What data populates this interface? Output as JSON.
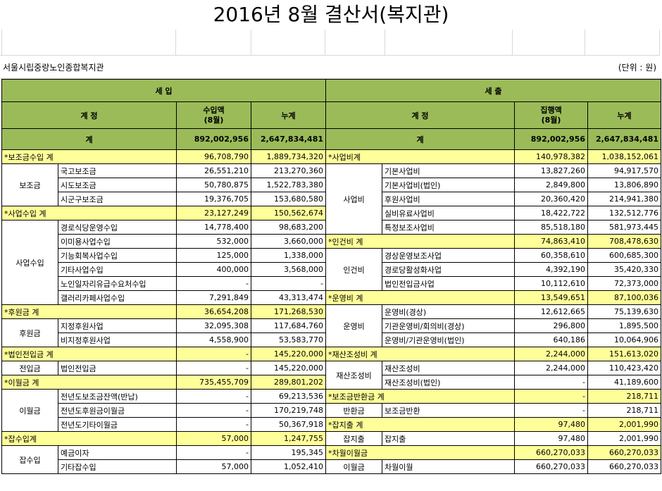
{
  "title": "2016년 8월 결산서(복지관)",
  "org_name": "서울시립중랑노인종합복지관",
  "unit": "(단위 : 원)",
  "headers": {
    "income": "세 입",
    "expense": "세 출",
    "account": "계 정",
    "income_amount": "수입액\n(8월)",
    "cumulative": "누계",
    "expense_amount": "집행액\n(8월)"
  },
  "totals": {
    "label": "계",
    "income_month": "892,002,956",
    "income_cum": "2,647,834,481",
    "expense_month": "892,002,956",
    "expense_cum": "2,647,834,481"
  },
  "income": [
    {
      "type": "sum",
      "label": "*보조금수입 계",
      "month": "96,708,790",
      "cum": "1,889,734,320"
    },
    {
      "type": "group",
      "label": "보조금",
      "items": [
        {
          "label": "국고보조금",
          "month": "26,551,210",
          "cum": "213,270,360"
        },
        {
          "label": "시도보조금",
          "month": "50,780,875",
          "cum": "1,522,783,380"
        },
        {
          "label": "시군구보조금",
          "month": "19,376,705",
          "cum": "153,680,580"
        }
      ]
    },
    {
      "type": "sum",
      "label": "*사업수입 계",
      "month": "23,127,249",
      "cum": "150,562,674"
    },
    {
      "type": "group",
      "label": "사업수입",
      "items": [
        {
          "label": "경로식당운영수입",
          "month": "14,778,400",
          "cum": "98,683,200"
        },
        {
          "label": "이미용사업수입",
          "month": "532,000",
          "cum": "3,660,000"
        },
        {
          "label": "기능회복사업수입",
          "month": "125,000",
          "cum": "1,338,000"
        },
        {
          "label": "기타사업수입",
          "month": "400,000",
          "cum": "3,568,000"
        },
        {
          "label": "노인일자리유급수요처수입",
          "month": "-",
          "cum": "-"
        },
        {
          "label": "갤러리카페사업수입",
          "month": "7,291,849",
          "cum": "43,313,474"
        }
      ]
    },
    {
      "type": "sum",
      "label": "*후원금 계",
      "month": "36,654,208",
      "cum": "171,268,530"
    },
    {
      "type": "group",
      "label": "후원금",
      "items": [
        {
          "label": "지정후원사업",
          "month": "32,095,308",
          "cum": "117,684,760"
        },
        {
          "label": "비지정후원사업",
          "month": "4,558,900",
          "cum": "53,583,770"
        }
      ]
    },
    {
      "type": "sum",
      "label": "*법인전입금 계",
      "month": "-",
      "cum": "145,220,000"
    },
    {
      "type": "group",
      "label": "전입금",
      "items": [
        {
          "label": "법인전입금",
          "month": "-",
          "cum": "145,220,000"
        }
      ]
    },
    {
      "type": "sum",
      "label": "*이월금 계",
      "month": "735,455,709",
      "cum": "289,801,202"
    },
    {
      "type": "group",
      "label": "이월금",
      "items": [
        {
          "label": "전년도보조금잔액(반납)",
          "month": "-",
          "cum": "69,213,536"
        },
        {
          "label": "전년도후원금이월금",
          "month": "-",
          "cum": "170,219,748"
        },
        {
          "label": "전년도기타이월금",
          "month": "-",
          "cum": "50,367,918"
        }
      ]
    },
    {
      "type": "sum",
      "label": "*잡수입계",
      "month": "57,000",
      "cum": "1,247,755"
    },
    {
      "type": "group",
      "label": "잡수입",
      "items": [
        {
          "label": "예금이자",
          "month": "-",
          "cum": "195,345"
        },
        {
          "label": "기타잡수입",
          "month": "57,000",
          "cum": "1,052,410"
        }
      ]
    }
  ],
  "expense": [
    {
      "type": "sum",
      "label": "*사업비계",
      "month": "140,978,382",
      "cum": "1,038,152,061"
    },
    {
      "type": "group",
      "label": "사업비",
      "items": [
        {
          "label": "기본사업비",
          "month": "13,827,260",
          "cum": "94,917,570"
        },
        {
          "label": "기본사업비(법인)",
          "month": "2,849,800",
          "cum": "13,806,890"
        },
        {
          "label": "후원사업비",
          "month": "20,360,420",
          "cum": "214,941,380"
        },
        {
          "label": "실비유료사업비",
          "month": "18,422,722",
          "cum": "132,512,776"
        },
        {
          "label": "특정보조사업비",
          "month": "85,518,180",
          "cum": "581,973,445"
        }
      ]
    },
    {
      "type": "sum",
      "label": "*인건비 계",
      "month": "74,863,410",
      "cum": "708,478,630"
    },
    {
      "type": "group",
      "label": "인건비",
      "items": [
        {
          "label": "경상운영보조사업",
          "month": "60,358,610",
          "cum": "600,685,300"
        },
        {
          "label": "경로당활성화사업",
          "month": "4,392,190",
          "cum": "35,420,330"
        },
        {
          "label": "법인전입금사업",
          "month": "10,112,610",
          "cum": "72,373,000"
        }
      ]
    },
    {
      "type": "sum",
      "label": "*운영비 계",
      "month": "13,549,651",
      "cum": "87,100,036"
    },
    {
      "type": "group",
      "label": "운영비",
      "items": [
        {
          "label": "운영비(경상)",
          "month": "12,612,665",
          "cum": "75,139,630"
        },
        {
          "label": "기관운영비/회의비(경상)",
          "month": "296,800",
          "cum": "1,895,500"
        },
        {
          "label": "운영비/기관운영비(법인)",
          "month": "640,186",
          "cum": "10,064,906"
        }
      ]
    },
    {
      "type": "sum",
      "label": "*재산조성비 계",
      "month": "2,244,000",
      "cum": "151,613,020"
    },
    {
      "type": "group",
      "label": "재산조성비",
      "items": [
        {
          "label": "재산조성비",
          "month": "2,244,000",
          "cum": "110,423,420"
        },
        {
          "label": "재산조성비(법인)",
          "month": "-",
          "cum": "41,189,600"
        }
      ]
    },
    {
      "type": "sum",
      "label": "*보조금반환금 계",
      "month": "-",
      "cum": "218,711"
    },
    {
      "type": "group",
      "label": "반환금",
      "items": [
        {
          "label": "보조금반환",
          "month": "-",
          "cum": "218,711"
        }
      ]
    },
    {
      "type": "sum",
      "label": "*잡지출 계",
      "month": "97,480",
      "cum": "2,001,990"
    },
    {
      "type": "group",
      "label": "잡지출",
      "items": [
        {
          "label": "잡지출",
          "month": "97,480",
          "cum": "2,001,990"
        }
      ]
    },
    {
      "type": "sum",
      "label": "*차월이월금",
      "month": "660,270,033",
      "cum": "660,270,033"
    },
    {
      "type": "group",
      "label": "이월금",
      "items": [
        {
          "label": "차월이월",
          "month": "660,270,033",
          "cum": "660,270,033"
        }
      ]
    }
  ]
}
